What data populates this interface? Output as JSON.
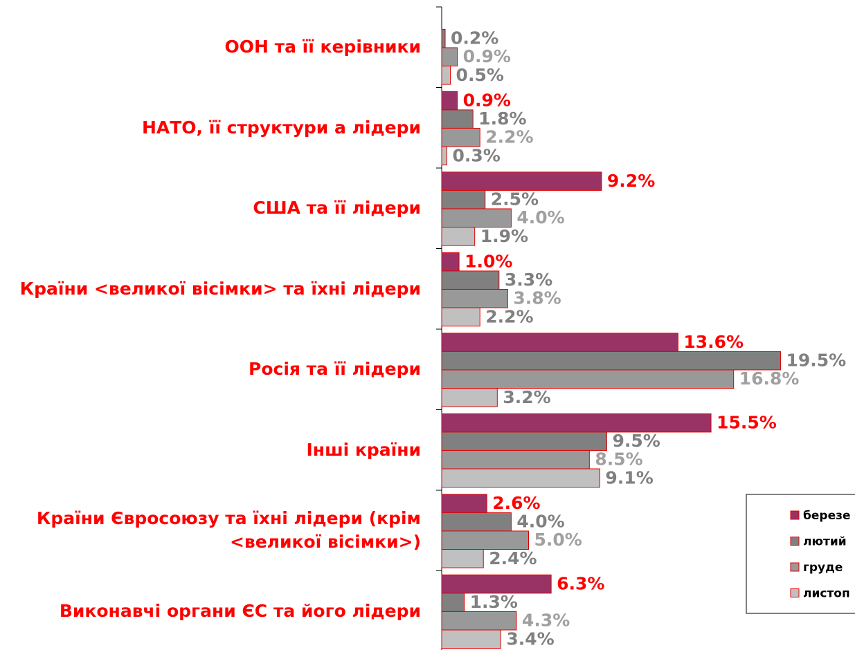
{
  "chart_data": {
    "type": "barh",
    "categories": [
      "ООН та її керівники",
      "НАТО, її структури а лідери",
      "США та її лідери",
      "Країни <великої вісімки> та їхні лідери",
      "Росія та її лідери",
      "Інші країни",
      "Країни Євросоюзу та їхні лідери (крім <великої вісімки>)",
      "Виконавчі органи ЄС та його лідери"
    ],
    "xlim": [
      0,
      20
    ],
    "series": [
      {
        "name": "березе",
        "color": "#993366",
        "label_color": "#ff0000",
        "values": [
          null,
          0.9,
          9.2,
          1.0,
          13.6,
          15.5,
          2.6,
          6.3
        ],
        "value_labels": [
          null,
          "0.9%",
          "9.2%",
          "1.0%",
          "13.6%",
          "15.5%",
          "2.6%",
          "6.3%"
        ]
      },
      {
        "name": "лютий",
        "color": "#808080",
        "label_color": "#808080",
        "values": [
          0.2,
          1.8,
          2.5,
          3.3,
          19.5,
          9.5,
          4.0,
          1.3
        ],
        "value_labels": [
          "0.2%",
          "1.8%",
          "2.5%",
          "3.3%",
          "19.5%",
          "9.5%",
          "4.0%",
          "1.3%"
        ]
      },
      {
        "name": "груде",
        "color": "#999999",
        "label_color": "#a0a0a0",
        "values": [
          0.9,
          2.2,
          4.0,
          3.8,
          16.8,
          8.5,
          5.0,
          4.3
        ],
        "value_labels": [
          "0.9%",
          "2.2%",
          "4.0%",
          "3.8%",
          "16.8%",
          "8.5%",
          "5.0%",
          "4.3%"
        ]
      },
      {
        "name": "листоп",
        "color": "#c0c0c0",
        "label_color": "#808080",
        "values": [
          0.5,
          0.3,
          1.9,
          2.2,
          3.2,
          9.1,
          2.4,
          3.4
        ],
        "value_labels": [
          "0.5%",
          "0.3%",
          "1.9%",
          "2.2%",
          "3.2%",
          "9.1%",
          "2.4%",
          "3.4%"
        ]
      }
    ],
    "legend": "bottom-right"
  }
}
